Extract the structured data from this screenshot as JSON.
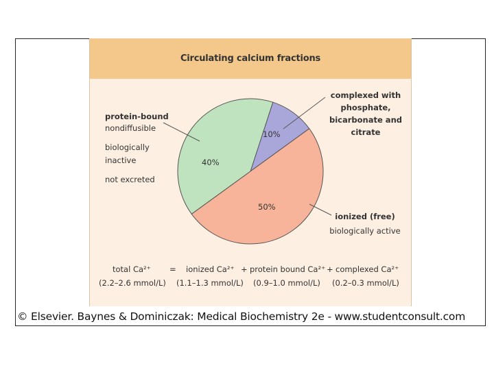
{
  "chart_data": {
    "type": "pie",
    "title": "Circulating calcium fractions",
    "slices": [
      {
        "label": "complexed",
        "value": 10,
        "display": "10%",
        "color": "#a9a6d9"
      },
      {
        "label": "ionized",
        "value": 50,
        "display": "50%",
        "color": "#f7b49a"
      },
      {
        "label": "protein-bound",
        "value": 40,
        "display": "40%",
        "color": "#bfe3bf"
      }
    ]
  },
  "annotations": {
    "protein_bound": {
      "heading": "protein-bound",
      "line1": "nondiffusible",
      "line2": "biologically",
      "line3": "inactive",
      "line4": "not excreted"
    },
    "complexed": {
      "line1": "complexed with",
      "line2": "phosphate,",
      "line3": "bicarbonate and",
      "line4": "citrate"
    },
    "ionized": {
      "heading": "ionized (free)",
      "line1": "biologically active"
    }
  },
  "equation": {
    "total": "total Ca²⁺",
    "total_range": "(2.2–2.6 mmol/L)",
    "equals": "=",
    "ionized": "ionized Ca²⁺",
    "ionized_range": "(1.1–1.3 mmol/L)",
    "plus1": "+",
    "protein": "protein bound Ca²⁺",
    "protein_range": "(0.9–1.0 mmol/L)",
    "plus2": "+",
    "complexed": "complexed Ca²⁺",
    "complexed_range": "(0.2–0.3 mmol/L)"
  },
  "footer": {
    "text": "© Elsevier. Baynes & Dominiczak: Medical Biochemistry 2e - www.studentconsult.com"
  },
  "colors": {
    "title_band": "#f3c88a",
    "panel_background": "#fdefe1"
  }
}
